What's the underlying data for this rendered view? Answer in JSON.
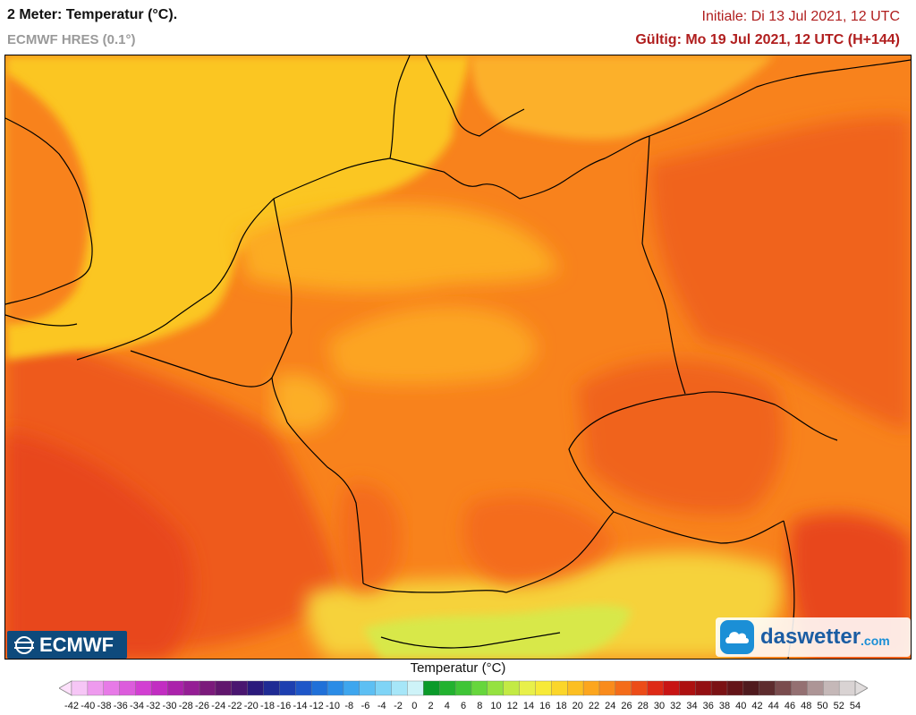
{
  "header": {
    "title": "2 Meter: Temperatur (°C).",
    "model": "ECMWF HRES (0.1°)",
    "init": "Initiale: Di 13 Jul 2021, 12 UTC",
    "valid": "Gültig: Mo 19 Jul 2021, 12 UTC (H+144)"
  },
  "logos": {
    "left": "ECMWF",
    "right_main": "daswetter",
    "right_suffix": ".com"
  },
  "legend": {
    "title": "Temperatur (°C)",
    "ticks": [
      "-42",
      "-40",
      "-38",
      "-36",
      "-34",
      "-32",
      "-30",
      "-28",
      "-26",
      "-24",
      "-22",
      "-20",
      "-18",
      "-16",
      "-14",
      "-12",
      "-10",
      "-8",
      "-6",
      "-4",
      "-2",
      "0",
      "2",
      "4",
      "6",
      "8",
      "10",
      "12",
      "14",
      "16",
      "18",
      "20",
      "22",
      "24",
      "26",
      "28",
      "30",
      "32",
      "34",
      "36",
      "38",
      "40",
      "42",
      "44",
      "46",
      "48",
      "50",
      "52",
      "54"
    ],
    "colors": [
      "#f6c6f6",
      "#ee9aee",
      "#e77ae7",
      "#dc5cdc",
      "#d23fd2",
      "#c22dc2",
      "#ab22ab",
      "#951e95",
      "#7b1a7b",
      "#61166d",
      "#4a1670",
      "#2b1a7c",
      "#1f2b94",
      "#1d3fb0",
      "#1e56c8",
      "#2070d8",
      "#2b8ce6",
      "#3ea6ee",
      "#5dbff3",
      "#7fd4f6",
      "#a6e6f8",
      "#cef3f8",
      "#0a9a2a",
      "#22b22f",
      "#3fc536",
      "#66d63c",
      "#95e240",
      "#c3ea44",
      "#e8f04a",
      "#f7ea38",
      "#fbd62a",
      "#fcbf22",
      "#fca61e",
      "#f98b1c",
      "#f46c1a",
      "#ec4c18",
      "#de2a16",
      "#c81414",
      "#ad1010",
      "#930f12",
      "#7b1214",
      "#641418",
      "#4f1a1e",
      "#5e2c2e",
      "#7a4c4e",
      "#947072",
      "#ad9596",
      "#c5b8b8",
      "#d9d3d3"
    ]
  },
  "map": {
    "colors": {
      "sea_north": "#fbc624",
      "base": "#f8821c",
      "warm": "#f0641c",
      "hot": "#e8461a",
      "mild": "#fca424",
      "alpine_cool": "#f2e040",
      "alpine_cold": "#c8e84a",
      "border": "#000000"
    }
  }
}
